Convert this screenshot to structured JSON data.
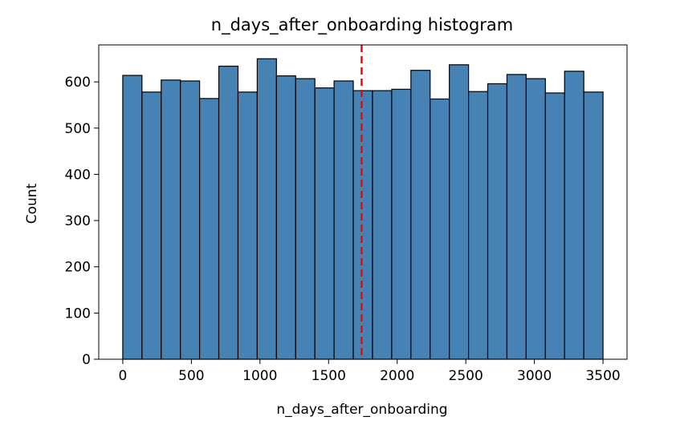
{
  "chart_data": {
    "type": "bar",
    "title": "n_days_after_onboarding histogram",
    "xlabel": "n_days_after_onboarding",
    "ylabel": "Count",
    "xlim": [
      -175,
      3675
    ],
    "ylim": [
      0,
      680
    ],
    "x_ticks": [
      0,
      500,
      1000,
      1500,
      2000,
      2500,
      3000,
      3500
    ],
    "y_ticks": [
      0,
      100,
      200,
      300,
      400,
      500,
      600
    ],
    "bin_edges": [
      0,
      140,
      280,
      420,
      560,
      700,
      840,
      980,
      1120,
      1260,
      1400,
      1540,
      1680,
      1820,
      1960,
      2100,
      2240,
      2380,
      2520,
      2660,
      2800,
      2940,
      3080,
      3220,
      3360,
      3500
    ],
    "values": [
      614,
      578,
      604,
      602,
      564,
      634,
      578,
      650,
      613,
      607,
      587,
      602,
      581,
      581,
      584,
      625,
      563,
      637,
      579,
      596,
      616,
      607,
      576,
      623,
      578
    ],
    "median_line": 1741,
    "bar_color": "#4682b4",
    "edge_color": "#000000",
    "median_line_color": "#ff0000",
    "grid": false
  }
}
